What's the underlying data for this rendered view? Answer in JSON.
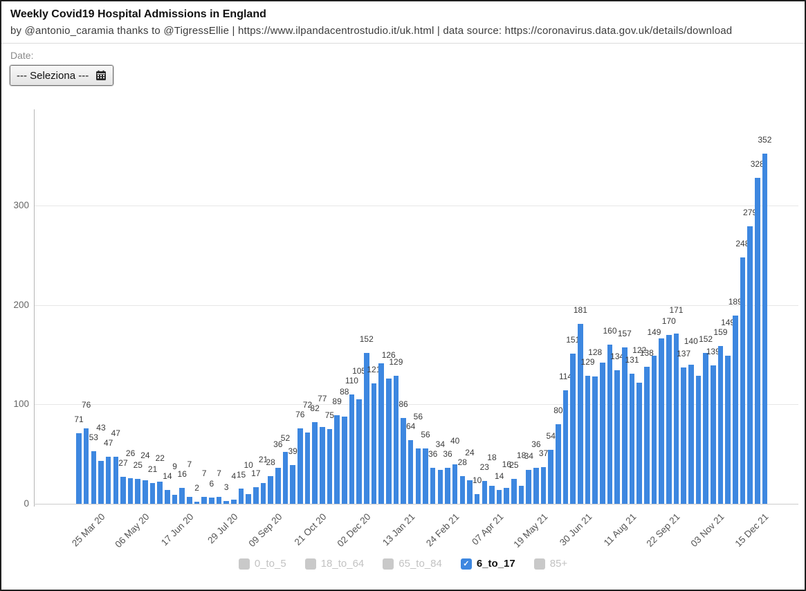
{
  "header": {
    "title": "Weekly Covid19 Hospital Admissions in England",
    "subtitle": "by @antonio_caramia thanks to @TigressEllie | https://www.ilpandacentrostudio.it/uk.html | data source: https://coronavirus.data.gov.uk/details/download"
  },
  "controls": {
    "date_label": "Date:",
    "date_select_value": "--- Seleziona ---",
    "calendar_icon": "calendar-icon"
  },
  "chart_data": {
    "type": "bar",
    "title": "Weekly Covid19 Hospital Admissions in England",
    "series_name": "6_to_17",
    "bar_color": "#3d87e0",
    "grid": true,
    "legend_position": "bottom",
    "ylim": [
      0,
      380
    ],
    "y_ticks": [
      0,
      100,
      200,
      300
    ],
    "x_tick_every": 6,
    "x_tick_labels": [
      "25 Mar 20",
      "06 May 20",
      "17 Jun 20",
      "29 Jul 20",
      "09 Sep 20",
      "21 Oct 20",
      "02 Dec 20",
      "13 Jan 21",
      "24 Feb 21",
      "07 Apr 21",
      "19 May 21",
      "30 Jun 21",
      "11 Aug 21",
      "22 Sep 21",
      "03 Nov 21",
      "15 Dec 21"
    ],
    "values": [
      71,
      76,
      53,
      43,
      47,
      47,
      27,
      26,
      25,
      24,
      21,
      22,
      14,
      9,
      16,
      7,
      2,
      7,
      6,
      7,
      3,
      4,
      15,
      10,
      17,
      21,
      28,
      36,
      52,
      39,
      76,
      72,
      82,
      77,
      75,
      89,
      88,
      110,
      105,
      152,
      121,
      141,
      126,
      129,
      86,
      64,
      56,
      56,
      36,
      34,
      36,
      40,
      28,
      24,
      10,
      23,
      18,
      14,
      16,
      25,
      18,
      34,
      36,
      37,
      54,
      80,
      114,
      151,
      181,
      129,
      128,
      142,
      160,
      134,
      157,
      131,
      122,
      138,
      149,
      166,
      170,
      171,
      137,
      140,
      129,
      152,
      139,
      159,
      149,
      189,
      248,
      279,
      328,
      352
    ],
    "hidden_label_indices": [
      41,
      71,
      79,
      84
    ]
  },
  "legend": {
    "items": [
      {
        "label": "0_to_5",
        "checked": false
      },
      {
        "label": "18_to_64",
        "checked": false
      },
      {
        "label": "65_to_84",
        "checked": false
      },
      {
        "label": "6_to_17",
        "checked": true
      },
      {
        "label": "85+",
        "checked": false
      }
    ],
    "checked_color": "#3d87e0",
    "unchecked_box_color": "#c9c9c9",
    "unchecked_text_color": "#c2c2c2",
    "checked_text_color": "#111111",
    "check_glyph": "✓"
  }
}
